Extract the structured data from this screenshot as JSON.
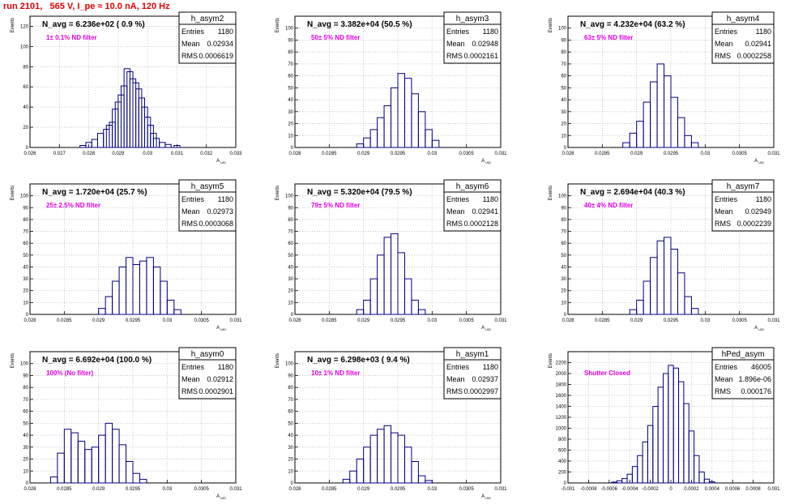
{
  "title": "run 2101,   565 V, I_pe ≈ 10.0 nA, 120 Hz",
  "colors": {
    "title": "#e00000",
    "annotation": "#e000e0",
    "histogram": "#000080",
    "grid": "#bbbbbb"
  },
  "chart_data": [
    {
      "type": "bar",
      "name": "h_asym2",
      "nav_label": "N_avg = 6.236e+02 ( 0.9 %)",
      "filter_label": "1± 0.1% ND filter",
      "ylabel": "Events",
      "xlabel": "A_UID",
      "stats": {
        "entries": "1180",
        "mean": "0.02934",
        "rms": "0.0006619"
      },
      "xlim": [
        0.026,
        0.033
      ],
      "xticks": [
        "0.026",
        "0.027",
        "0.028",
        "0.029",
        "0.03",
        "0.031",
        "0.032",
        "0.033"
      ],
      "ylim": [
        0,
        130
      ],
      "yticks": [
        "0",
        "20",
        "40",
        "60",
        "80",
        "100",
        "120"
      ],
      "bins": [
        [
          0.0278,
          2
        ],
        [
          0.028,
          5
        ],
        [
          0.0282,
          8
        ],
        [
          0.0284,
          14
        ],
        [
          0.0286,
          18
        ],
        [
          0.0287,
          22
        ],
        [
          0.0288,
          25
        ],
        [
          0.0289,
          38
        ],
        [
          0.029,
          45
        ],
        [
          0.0291,
          52
        ],
        [
          0.0292,
          61
        ],
        [
          0.0293,
          78
        ],
        [
          0.0294,
          75
        ],
        [
          0.0295,
          68
        ],
        [
          0.0296,
          64
        ],
        [
          0.0297,
          58
        ],
        [
          0.0298,
          49
        ],
        [
          0.0299,
          40
        ],
        [
          0.03,
          30
        ],
        [
          0.0301,
          22
        ],
        [
          0.0302,
          14
        ],
        [
          0.0303,
          9
        ],
        [
          0.0305,
          5
        ],
        [
          0.0307,
          3
        ],
        [
          0.031,
          2
        ]
      ]
    },
    {
      "type": "bar",
      "name": "h_asym3",
      "nav_label": "N_avg = 3.382e+04 (50.5 %)",
      "filter_label": "50± 5% ND filter",
      "ylabel": "Events",
      "xlabel": "A_UID",
      "stats": {
        "entries": "1180",
        "mean": "0.02948",
        "rms": "0.0002161"
      },
      "xlim": [
        0.028,
        0.031
      ],
      "xticks": [
        "0.028",
        "0.0285",
        "0.029",
        "0.0295",
        "0.03",
        "0.0305",
        "0.031"
      ],
      "ylim": [
        0,
        110
      ],
      "yticks": [
        "0",
        "10",
        "20",
        "30",
        "40",
        "50",
        "60",
        "70",
        "80",
        "90",
        "100"
      ],
      "bins": [
        [
          0.02895,
          3
        ],
        [
          0.02905,
          8
        ],
        [
          0.02915,
          15
        ],
        [
          0.02925,
          25
        ],
        [
          0.02935,
          35
        ],
        [
          0.02945,
          50
        ],
        [
          0.02955,
          62
        ],
        [
          0.02965,
          58
        ],
        [
          0.02975,
          45
        ],
        [
          0.02985,
          30
        ],
        [
          0.02995,
          15
        ],
        [
          0.03005,
          6
        ]
      ]
    },
    {
      "type": "bar",
      "name": "h_asym4",
      "nav_label": "N_avg = 4.232e+04 (63.2 %)",
      "filter_label": "63± 5% ND filter",
      "ylabel": "Events",
      "xlabel": "A_UID",
      "stats": {
        "entries": "1180",
        "mean": "0.02941",
        "rms": "0.0002258"
      },
      "xlim": [
        0.028,
        0.031
      ],
      "xticks": [
        "0.028",
        "0.0285",
        "0.029",
        "0.0295",
        "0.03",
        "0.0305",
        "0.031"
      ],
      "ylim": [
        0,
        110
      ],
      "yticks": [
        "0",
        "10",
        "20",
        "30",
        "40",
        "50",
        "60",
        "70",
        "80",
        "90",
        "100"
      ],
      "bins": [
        [
          0.02885,
          4
        ],
        [
          0.02895,
          12
        ],
        [
          0.02905,
          22
        ],
        [
          0.02915,
          38
        ],
        [
          0.02925,
          55
        ],
        [
          0.02935,
          70
        ],
        [
          0.02945,
          60
        ],
        [
          0.02955,
          42
        ],
        [
          0.02965,
          25
        ],
        [
          0.02975,
          10
        ],
        [
          0.02985,
          4
        ]
      ]
    },
    {
      "type": "bar",
      "name": "h_asym5",
      "nav_label": "N_avg = 1.720e+04 (25.7 %)",
      "filter_label": "25± 2.5% ND filter",
      "ylabel": "Events",
      "xlabel": "A_UID",
      "stats": {
        "entries": "1180",
        "mean": "0.02973",
        "rms": "0.0003068"
      },
      "xlim": [
        0.028,
        0.031
      ],
      "xticks": [
        "0.028",
        "0.0285",
        "0.029",
        "0.0295",
        "0.03",
        "0.0305",
        "0.031"
      ],
      "ylim": [
        0,
        110
      ],
      "yticks": [
        "0",
        "10",
        "20",
        "30",
        "40",
        "50",
        "60",
        "70",
        "80",
        "90",
        "100"
      ],
      "bins": [
        [
          0.02905,
          5
        ],
        [
          0.02915,
          15
        ],
        [
          0.02925,
          28
        ],
        [
          0.02935,
          40
        ],
        [
          0.02945,
          48
        ],
        [
          0.02955,
          42
        ],
        [
          0.02965,
          45
        ],
        [
          0.02975,
          48
        ],
        [
          0.02985,
          40
        ],
        [
          0.02995,
          28
        ],
        [
          0.03005,
          12
        ],
        [
          0.03015,
          4
        ]
      ]
    },
    {
      "type": "bar",
      "name": "h_asym6",
      "nav_label": "N_avg = 5.320e+04 (79.5 %)",
      "filter_label": "79± 5% ND filter",
      "ylabel": "Events",
      "xlabel": "A_UID",
      "stats": {
        "entries": "1180",
        "mean": "0.02941",
        "rms": "0.0002128"
      },
      "xlim": [
        0.028,
        0.031
      ],
      "xticks": [
        "0.028",
        "0.0285",
        "0.029",
        "0.0295",
        "0.03",
        "0.0305",
        "0.031"
      ],
      "ylim": [
        0,
        110
      ],
      "yticks": [
        "0",
        "10",
        "20",
        "30",
        "40",
        "50",
        "60",
        "70",
        "80",
        "90",
        "100"
      ],
      "bins": [
        [
          0.02895,
          4
        ],
        [
          0.02905,
          12
        ],
        [
          0.02915,
          30
        ],
        [
          0.02925,
          50
        ],
        [
          0.02935,
          65
        ],
        [
          0.02945,
          68
        ],
        [
          0.02955,
          52
        ],
        [
          0.02965,
          30
        ],
        [
          0.02975,
          12
        ],
        [
          0.02985,
          4
        ]
      ]
    },
    {
      "type": "bar",
      "name": "h_asym7",
      "nav_label": "N_avg = 2.694e+04 (40.3 %)",
      "filter_label": "40± 4% ND filter",
      "ylabel": "Events",
      "xlabel": "A_UID",
      "stats": {
        "entries": "1180",
        "mean": "0.02949",
        "rms": "0.0002239"
      },
      "xlim": [
        0.028,
        0.031
      ],
      "xticks": [
        "0.028",
        "0.0285",
        "0.029",
        "0.0295",
        "0.03",
        "0.0305",
        "0.031"
      ],
      "ylim": [
        0,
        110
      ],
      "yticks": [
        "0",
        "10",
        "20",
        "30",
        "40",
        "50",
        "60",
        "70",
        "80",
        "90",
        "100"
      ],
      "bins": [
        [
          0.02895,
          4
        ],
        [
          0.02905,
          12
        ],
        [
          0.02915,
          28
        ],
        [
          0.02925,
          48
        ],
        [
          0.02935,
          62
        ],
        [
          0.02945,
          65
        ],
        [
          0.02955,
          55
        ],
        [
          0.02965,
          35
        ],
        [
          0.02975,
          15
        ],
        [
          0.02985,
          5
        ]
      ]
    },
    {
      "type": "bar",
      "name": "h_asym0",
      "nav_label": "N_avg = 6.692e+04 (100.0 %)",
      "filter_label": "100% (No filter)",
      "ylabel": "Events",
      "xlabel": "A_UID",
      "stats": {
        "entries": "1180",
        "mean": "0.02912",
        "rms": "0.0002901"
      },
      "xlim": [
        0.028,
        0.031
      ],
      "xticks": [
        "0.028",
        "0.0285",
        "0.029",
        "0.0295",
        "0.03",
        "0.0305",
        "0.031"
      ],
      "ylim": [
        0,
        110
      ],
      "yticks": [
        "0",
        "10",
        "20",
        "30",
        "40",
        "50",
        "60",
        "70",
        "80",
        "90",
        "100"
      ],
      "bins": [
        [
          0.02835,
          5
        ],
        [
          0.02845,
          25
        ],
        [
          0.02855,
          45
        ],
        [
          0.02865,
          42
        ],
        [
          0.02875,
          35
        ],
        [
          0.02885,
          28
        ],
        [
          0.02895,
          30
        ],
        [
          0.02905,
          40
        ],
        [
          0.02915,
          50
        ],
        [
          0.02925,
          45
        ],
        [
          0.02935,
          32
        ],
        [
          0.02945,
          18
        ],
        [
          0.02955,
          8
        ],
        [
          0.02965,
          3
        ]
      ]
    },
    {
      "type": "bar",
      "name": "h_asym1",
      "nav_label": "N_avg = 6.298e+03 ( 9.4 %)",
      "filter_label": "10± 1% ND filter",
      "ylabel": "Events",
      "xlabel": "A_UID",
      "stats": {
        "entries": "1180",
        "mean": "0.02937",
        "rms": "0.0002997"
      },
      "xlim": [
        0.028,
        0.031
      ],
      "xticks": [
        "0.028",
        "0.0285",
        "0.029",
        "0.0295",
        "0.03",
        "0.0305",
        "0.031"
      ],
      "ylim": [
        0,
        110
      ],
      "yticks": [
        "0",
        "10",
        "20",
        "30",
        "40",
        "50",
        "60",
        "70",
        "80",
        "90",
        "100"
      ],
      "bins": [
        [
          0.02875,
          3
        ],
        [
          0.02885,
          10
        ],
        [
          0.02895,
          20
        ],
        [
          0.02905,
          30
        ],
        [
          0.02915,
          40
        ],
        [
          0.02925,
          45
        ],
        [
          0.02935,
          48
        ],
        [
          0.02945,
          42
        ],
        [
          0.02955,
          40
        ],
        [
          0.02965,
          30
        ],
        [
          0.02975,
          18
        ],
        [
          0.02985,
          6
        ],
        [
          0.02995,
          2
        ]
      ]
    },
    {
      "type": "bar",
      "name": "hPed_asym",
      "nav_label": "",
      "filter_label": "Shutter Closed",
      "ylabel": "Events",
      "xlabel": "",
      "stats": {
        "entries": "46005",
        "mean": "1.896e-06",
        "rms": "0.000176"
      },
      "xlim": [
        -0.001,
        0.001
      ],
      "xticks": [
        "-0.001",
        "-0.0008",
        "-0.0006",
        "-0.0004",
        "-0.0002",
        "0",
        "0.0002",
        "0.0004",
        "0.0006",
        "0.0008",
        "0.001"
      ],
      "ylim": [
        0,
        2400
      ],
      "yticks": [
        "0",
        "200",
        "400",
        "600",
        "800",
        "1000",
        "1200",
        "1400",
        "1600",
        "1800",
        "2000",
        "2200"
      ],
      "bins": [
        [
          -0.00055,
          15
        ],
        [
          -0.0005,
          40
        ],
        [
          -0.00045,
          80
        ],
        [
          -0.0004,
          160
        ],
        [
          -0.00035,
          300
        ],
        [
          -0.0003,
          500
        ],
        [
          -0.00025,
          750
        ],
        [
          -0.0002,
          1050
        ],
        [
          -0.00015,
          1400
        ],
        [
          -0.0001,
          1750
        ],
        [
          -5e-05,
          2000
        ],
        [
          0.0,
          2150
        ],
        [
          5e-05,
          2100
        ],
        [
          0.0001,
          1850
        ],
        [
          0.00015,
          1450
        ],
        [
          0.0002,
          950
        ],
        [
          0.00025,
          500
        ],
        [
          0.0003,
          200
        ],
        [
          0.00035,
          70
        ],
        [
          0.0004,
          20
        ]
      ]
    }
  ]
}
